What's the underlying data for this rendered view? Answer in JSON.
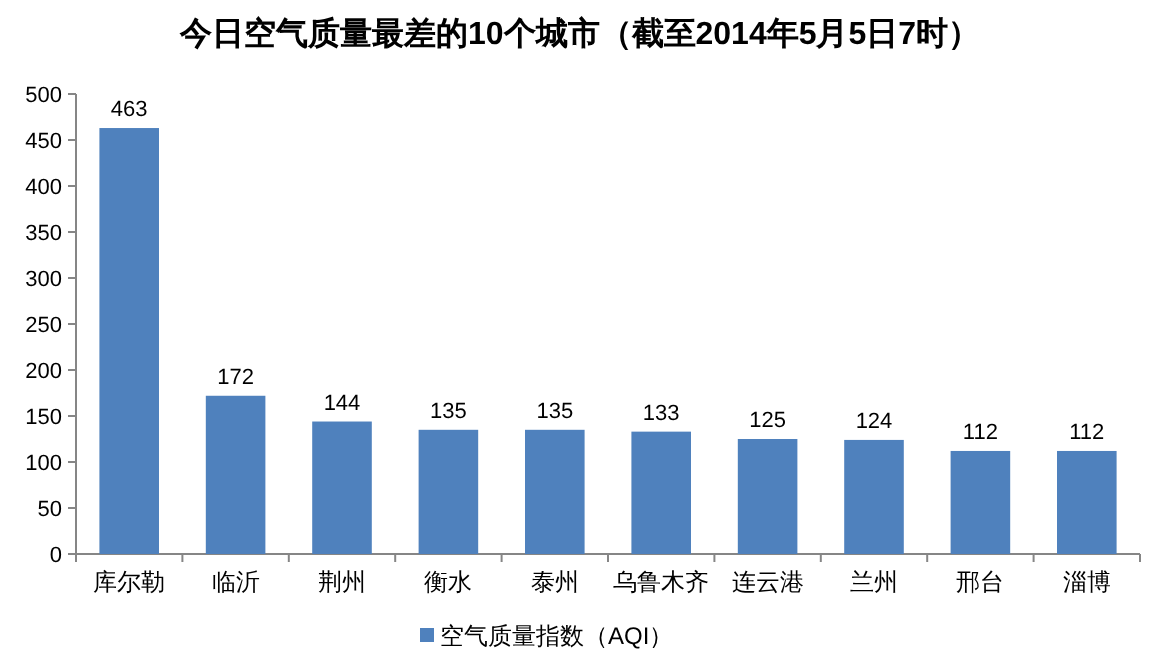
{
  "chart_data": {
    "type": "bar",
    "title": "今日空气质量最差的10个城市（截至2014年5月5日7时）",
    "categories": [
      "库尔勒",
      "临沂",
      "荆州",
      "衡水",
      "泰州",
      "乌鲁木齐",
      "连云港",
      "兰州",
      "邢台",
      "淄博"
    ],
    "series": [
      {
        "name": "空气质量指数（AQI）",
        "color": "#4f81bd",
        "values": [
          463,
          172,
          144,
          135,
          135,
          133,
          125,
          124,
          112,
          112
        ]
      }
    ],
    "ylim": [
      0,
      500
    ],
    "yticks": [
      0,
      50,
      100,
      150,
      200,
      250,
      300,
      350,
      400,
      450,
      500
    ],
    "data_labels": true,
    "legend": "bottom",
    "grid": false
  }
}
